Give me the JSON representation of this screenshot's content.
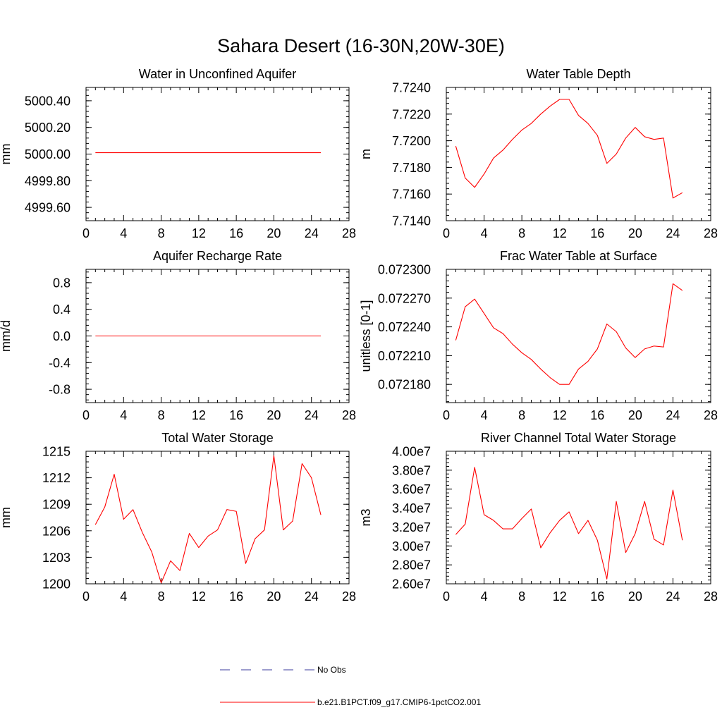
{
  "title": "Sahara Desert (16-30N,20W-30E)",
  "legend": {
    "items": [
      {
        "label": "No Obs",
        "color": "#3b3b9e",
        "style": "dashed"
      },
      {
        "label": "b.e21.B1PCT.f09_g17.CMIP6-1pctCO2.001",
        "color": "#ff0000",
        "style": "solid"
      }
    ]
  },
  "chart_data": [
    {
      "type": "line",
      "title": "Water in Unconfined Aquifer",
      "ylabel": "mm",
      "xlim": [
        0,
        28
      ],
      "xticks": [
        "0",
        "4",
        "8",
        "12",
        "16",
        "20",
        "24",
        "28"
      ],
      "ylim": [
        4999.5,
        5000.5
      ],
      "yticks": [
        {
          "v": 4999.6,
          "label": "4999.60"
        },
        {
          "v": 4999.8,
          "label": "4999.80"
        },
        {
          "v": 5000.0,
          "label": "5000.00"
        },
        {
          "v": 5000.2,
          "label": "5000.20"
        },
        {
          "v": 5000.4,
          "label": "5000.40"
        }
      ],
      "series": [
        {
          "name": "b.e21.B1PCT.f09_g17.CMIP6-1pctCO2.001",
          "color": "#ff0000",
          "x": [
            1,
            2,
            3,
            4,
            5,
            6,
            7,
            8,
            9,
            10,
            11,
            12,
            13,
            14,
            15,
            16,
            17,
            18,
            19,
            20,
            21,
            22,
            23,
            24,
            25
          ],
          "values": [
            5000.01,
            5000.01,
            5000.01,
            5000.01,
            5000.01,
            5000.01,
            5000.01,
            5000.01,
            5000.01,
            5000.01,
            5000.01,
            5000.01,
            5000.01,
            5000.01,
            5000.01,
            5000.01,
            5000.01,
            5000.01,
            5000.01,
            5000.01,
            5000.01,
            5000.01,
            5000.01,
            5000.01,
            5000.01
          ]
        }
      ]
    },
    {
      "type": "line",
      "title": "Water Table Depth",
      "ylabel": "m",
      "xlim": [
        0,
        28
      ],
      "xticks": [
        "0",
        "4",
        "8",
        "12",
        "16",
        "20",
        "24",
        "28"
      ],
      "ylim": [
        7.714,
        7.724
      ],
      "yticks": [
        {
          "v": 7.714,
          "label": "7.7140"
        },
        {
          "v": 7.716,
          "label": "7.7160"
        },
        {
          "v": 7.718,
          "label": "7.7180"
        },
        {
          "v": 7.72,
          "label": "7.7200"
        },
        {
          "v": 7.722,
          "label": "7.7220"
        },
        {
          "v": 7.724,
          "label": "7.7240"
        }
      ],
      "series": [
        {
          "name": "b.e21.B1PCT.f09_g17.CMIP6-1pctCO2.001",
          "color": "#ff0000",
          "x": [
            1,
            2,
            3,
            4,
            5,
            6,
            7,
            8,
            9,
            10,
            11,
            12,
            13,
            14,
            15,
            16,
            17,
            18,
            19,
            20,
            21,
            22,
            23,
            24,
            25
          ],
          "values": [
            7.7196,
            7.7172,
            7.7165,
            7.7175,
            7.7187,
            7.7193,
            7.7201,
            7.7208,
            7.7213,
            7.722,
            7.7226,
            7.7231,
            7.7231,
            7.7219,
            7.7213,
            7.7204,
            7.7183,
            7.719,
            7.7202,
            7.721,
            7.7203,
            7.7201,
            7.7202,
            7.7157,
            7.7161
          ]
        }
      ]
    },
    {
      "type": "line",
      "title": "Aquifer Recharge Rate",
      "ylabel": "mm/d",
      "xlim": [
        0,
        28
      ],
      "xticks": [
        "0",
        "4",
        "8",
        "12",
        "16",
        "20",
        "24",
        "28"
      ],
      "ylim": [
        -1,
        1
      ],
      "yticks": [
        {
          "v": -0.8,
          "label": "-0.8"
        },
        {
          "v": -0.4,
          "label": "-0.4"
        },
        {
          "v": 0,
          "label": "0.0"
        },
        {
          "v": 0.4,
          "label": "0.4"
        },
        {
          "v": 0.8,
          "label": "0.8"
        }
      ],
      "series": [
        {
          "name": "b.e21.B1PCT.f09_g17.CMIP6-1pctCO2.001",
          "color": "#ff0000",
          "x": [
            1,
            2,
            3,
            4,
            5,
            6,
            7,
            8,
            9,
            10,
            11,
            12,
            13,
            14,
            15,
            16,
            17,
            18,
            19,
            20,
            21,
            22,
            23,
            24,
            25
          ],
          "values": [
            0,
            0,
            0,
            0,
            0,
            0,
            0,
            0,
            0,
            0,
            0,
            0,
            0,
            0,
            0,
            0,
            0,
            0,
            0,
            0,
            0,
            0,
            0,
            0,
            0
          ]
        }
      ]
    },
    {
      "type": "line",
      "title": "Frac Water Table at Surface",
      "ylabel": "unitless [0-1]",
      "xlim": [
        0,
        28
      ],
      "xticks": [
        "0",
        "4",
        "8",
        "12",
        "16",
        "20",
        "24",
        "28"
      ],
      "ylim": [
        0.072161,
        0.0723
      ],
      "yticks": [
        {
          "v": 0.07218,
          "label": "0.072180"
        },
        {
          "v": 0.07221,
          "label": "0.072210"
        },
        {
          "v": 0.07224,
          "label": "0.072240"
        },
        {
          "v": 0.07227,
          "label": "0.072270"
        },
        {
          "v": 0.0723,
          "label": "0.072300"
        }
      ],
      "series": [
        {
          "name": "b.e21.B1PCT.f09_g17.CMIP6-1pctCO2.001",
          "color": "#ff0000",
          "x": [
            1,
            2,
            3,
            4,
            5,
            6,
            7,
            8,
            9,
            10,
            11,
            12,
            13,
            14,
            15,
            16,
            17,
            18,
            19,
            20,
            21,
            22,
            23,
            24,
            25
          ],
          "values": [
            0.072226,
            0.072261,
            0.072269,
            0.072254,
            0.072239,
            0.072233,
            0.072222,
            0.072213,
            0.072206,
            0.072196,
            0.072187,
            0.07218,
            0.07218,
            0.072196,
            0.072204,
            0.072217,
            0.072243,
            0.072235,
            0.072218,
            0.072208,
            0.072217,
            0.07222,
            0.072219,
            0.072285,
            0.072278
          ]
        }
      ]
    },
    {
      "type": "line",
      "title": "Total Water Storage",
      "ylabel": "mm",
      "xlim": [
        0,
        28
      ],
      "xticks": [
        "0",
        "4",
        "8",
        "12",
        "16",
        "20",
        "24",
        "28"
      ],
      "ylim": [
        1200,
        1215
      ],
      "yticks": [
        {
          "v": 1200,
          "label": "1200"
        },
        {
          "v": 1203,
          "label": "1203"
        },
        {
          "v": 1206,
          "label": "1206"
        },
        {
          "v": 1209,
          "label": "1209"
        },
        {
          "v": 1212,
          "label": "1212"
        },
        {
          "v": 1215,
          "label": "1215"
        }
      ],
      "series": [
        {
          "name": "b.e21.B1PCT.f09_g17.CMIP6-1pctCO2.001",
          "color": "#ff0000",
          "x": [
            1,
            2,
            3,
            4,
            5,
            6,
            7,
            8,
            9,
            10,
            11,
            12,
            13,
            14,
            15,
            16,
            17,
            18,
            19,
            20,
            21,
            22,
            23,
            24,
            25
          ],
          "values": [
            1206.7,
            1208.7,
            1212.4,
            1207.3,
            1208.4,
            1205.8,
            1203.6,
            1200.1,
            1202.6,
            1201.5,
            1205.7,
            1204.1,
            1205.4,
            1206.1,
            1208.4,
            1208.2,
            1202.3,
            1205.1,
            1206.1,
            1214.5,
            1206.1,
            1207.1,
            1213.6,
            1212.0,
            1207.8
          ]
        }
      ]
    },
    {
      "type": "line",
      "title": "River Channel Total Water Storage",
      "ylabel": "m3",
      "xlim": [
        0,
        28
      ],
      "xticks": [
        "0",
        "4",
        "8",
        "12",
        "16",
        "20",
        "24",
        "28"
      ],
      "ylim": [
        26000000,
        40000000
      ],
      "yticks": [
        {
          "v": 26000000,
          "label": "2.60e7"
        },
        {
          "v": 28000000,
          "label": "2.80e7"
        },
        {
          "v": 30000000,
          "label": "3.00e7"
        },
        {
          "v": 32000000,
          "label": "3.20e7"
        },
        {
          "v": 34000000,
          "label": "3.40e7"
        },
        {
          "v": 36000000,
          "label": "3.60e7"
        },
        {
          "v": 38000000,
          "label": "3.80e7"
        },
        {
          "v": 40000000,
          "label": "4.00e7"
        }
      ],
      "series": [
        {
          "name": "b.e21.B1PCT.f09_g17.CMIP6-1pctCO2.001",
          "color": "#ff0000",
          "x": [
            1,
            2,
            3,
            4,
            5,
            6,
            7,
            8,
            9,
            10,
            11,
            12,
            13,
            14,
            15,
            16,
            17,
            18,
            19,
            20,
            21,
            22,
            23,
            24,
            25
          ],
          "values": [
            31200000,
            32300000,
            38300000,
            33300000,
            32700000,
            31800000,
            31800000,
            32900000,
            33900000,
            29800000,
            31400000,
            32700000,
            33600000,
            31300000,
            32700000,
            30600000,
            26500000,
            34700000,
            29300000,
            31300000,
            34700000,
            30700000,
            30100000,
            35900000,
            30600000
          ]
        }
      ]
    }
  ]
}
